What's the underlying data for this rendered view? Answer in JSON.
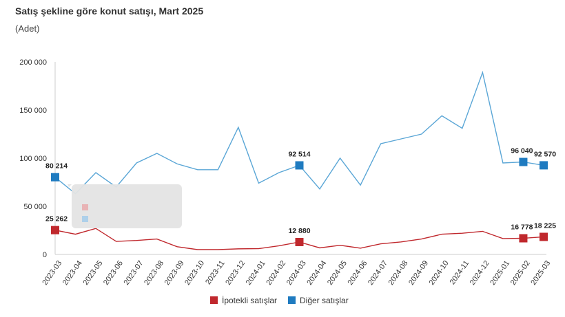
{
  "chart_data": {
    "type": "line",
    "title": "Satış şekline göre konut satışı, Mart 2025",
    "subtitle": "(Adet)",
    "xlabel": "",
    "ylabel": "",
    "ylim": [
      0,
      200000
    ],
    "yticks": [
      0,
      50000,
      100000,
      150000,
      200000
    ],
    "ytick_labels": [
      "0",
      "50 000",
      "100 000",
      "150 000",
      "200 000"
    ],
    "grid": false,
    "legend_position": "bottom-center",
    "categories": [
      "2023-03",
      "2023-04",
      "2023-05",
      "2023-06",
      "2023-07",
      "2023-08",
      "2023-09",
      "2023-10",
      "2023-11",
      "2023-12",
      "2024-01",
      "2024-02",
      "2024-03",
      "2024-04",
      "2024-05",
      "2024-06",
      "2024-07",
      "2024-08",
      "2024-09",
      "2024-10",
      "2024-11",
      "2024-12",
      "2025-01",
      "2025-02",
      "2025-03"
    ],
    "series": [
      {
        "name": "İpotekli satışlar",
        "color": "#c0282d",
        "values": [
          25262,
          21000,
          27000,
          13500,
          14500,
          16000,
          8000,
          5000,
          5000,
          5800,
          6000,
          9000,
          12880,
          6800,
          9500,
          6500,
          11000,
          13000,
          16000,
          21000,
          22000,
          24000,
          16500,
          16778,
          18225
        ],
        "markers": [
          0,
          12,
          23,
          24
        ],
        "labels": [
          "25 262",
          "12 880",
          "16 778",
          "18 225"
        ]
      },
      {
        "name": "Diğer satışlar",
        "color": "#1f7bc0",
        "line_color": "#5aa6d6",
        "values": [
          80214,
          63000,
          85000,
          70000,
          95000,
          105000,
          94000,
          88000,
          88000,
          132000,
          74000,
          85000,
          92514,
          68000,
          100000,
          72000,
          115000,
          120000,
          125000,
          144000,
          131000,
          189000,
          95000,
          96040,
          92570
        ],
        "markers": [
          0,
          12,
          23,
          24
        ],
        "labels": [
          "80 214",
          "92 514",
          "96 040",
          "92 570"
        ]
      }
    ]
  }
}
